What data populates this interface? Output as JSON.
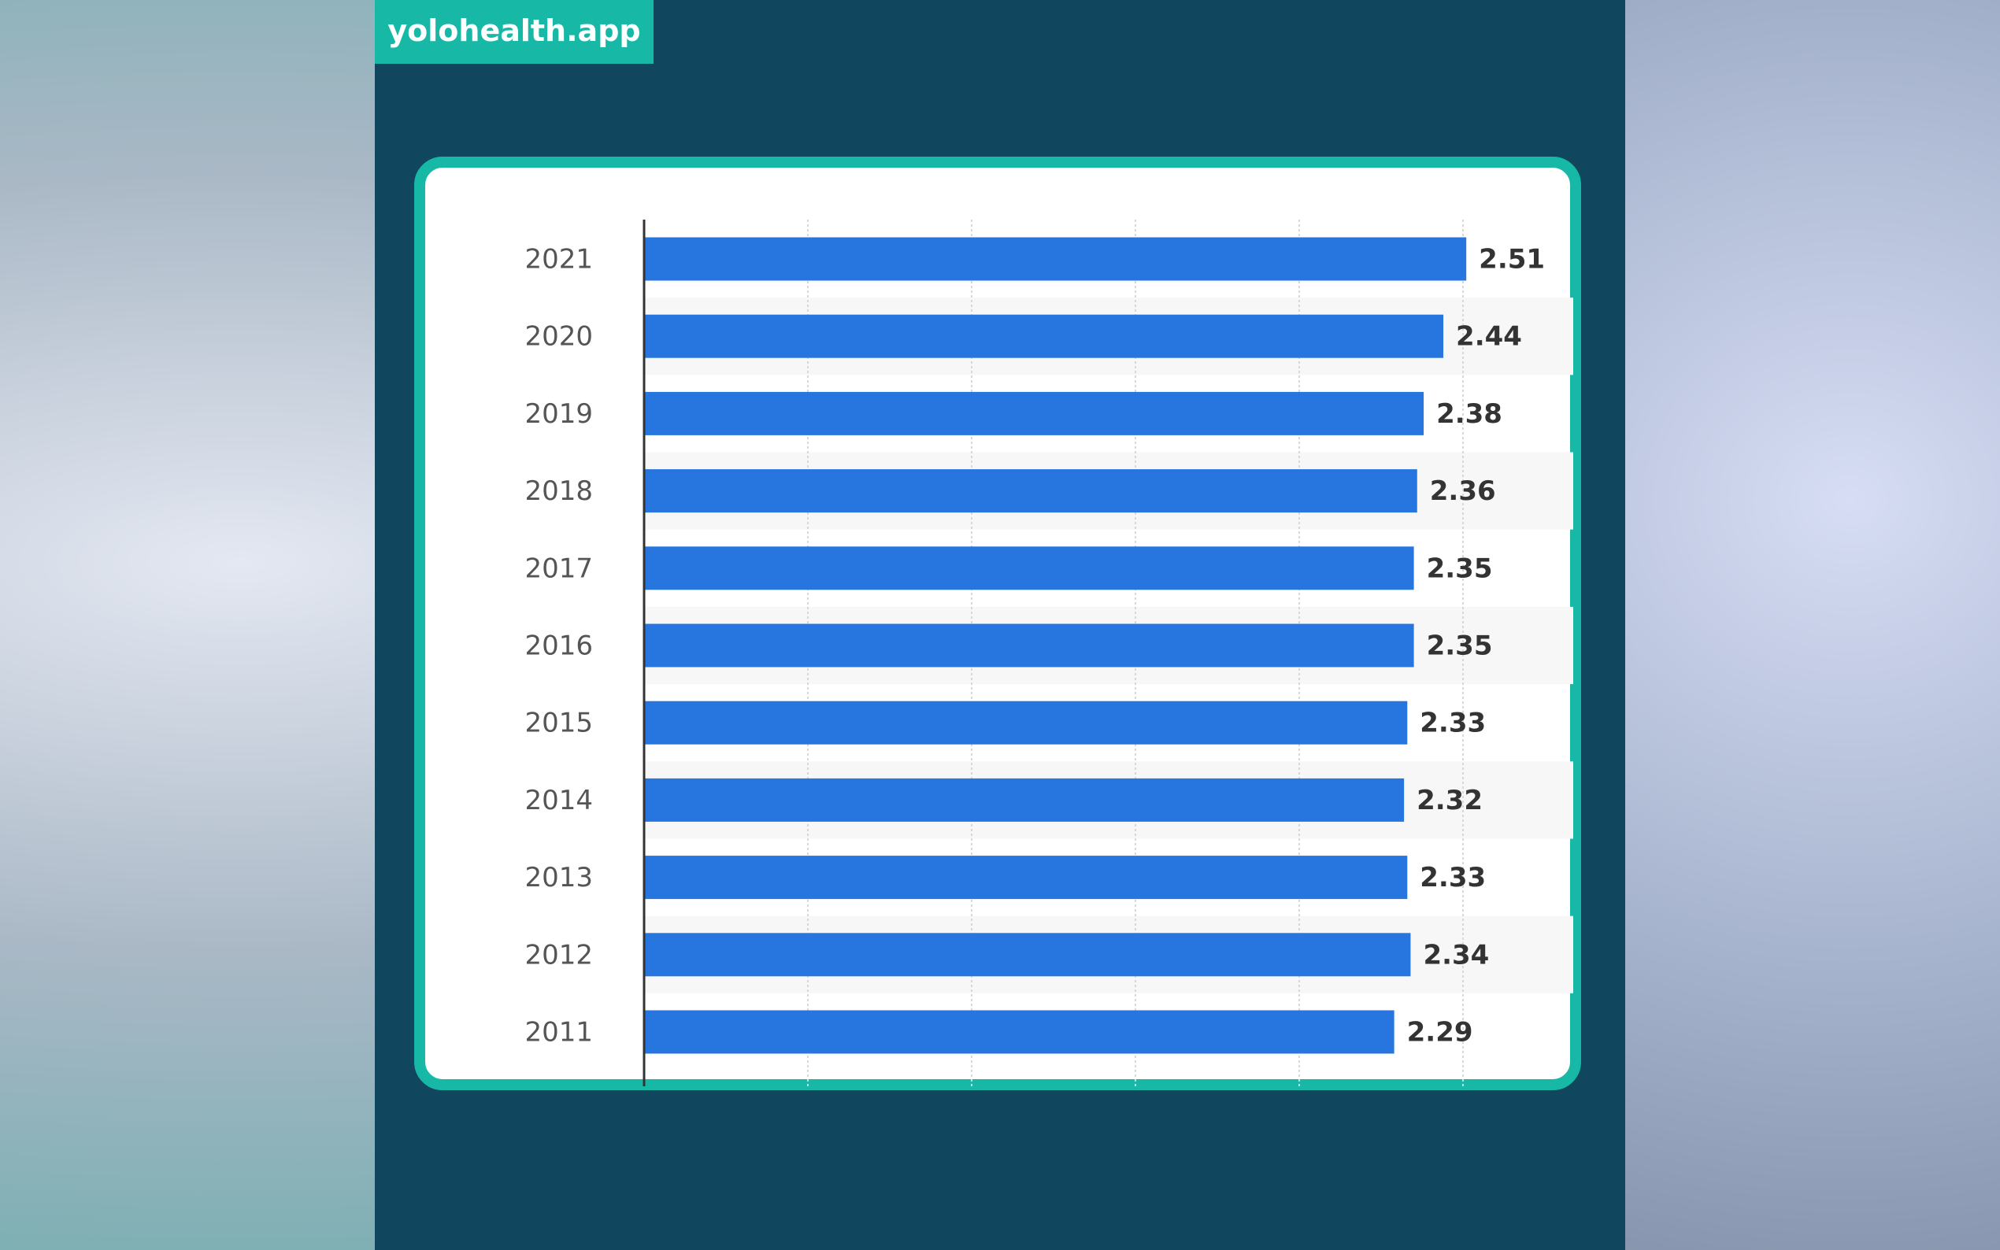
{
  "header": {
    "site": "yolohealth.app"
  },
  "chart_data": {
    "type": "bar",
    "orientation": "horizontal",
    "categories": [
      "2021",
      "2020",
      "2019",
      "2018",
      "2017",
      "2016",
      "2015",
      "2014",
      "2013",
      "2012",
      "2011"
    ],
    "values": [
      2.51,
      2.44,
      2.38,
      2.36,
      2.35,
      2.35,
      2.33,
      2.32,
      2.33,
      2.34,
      2.29
    ],
    "color": "#2775de",
    "xlim": [
      0,
      2.5
    ],
    "xticks": [
      0,
      0.5,
      1,
      1.5,
      2,
      2.5
    ],
    "grid": true
  }
}
